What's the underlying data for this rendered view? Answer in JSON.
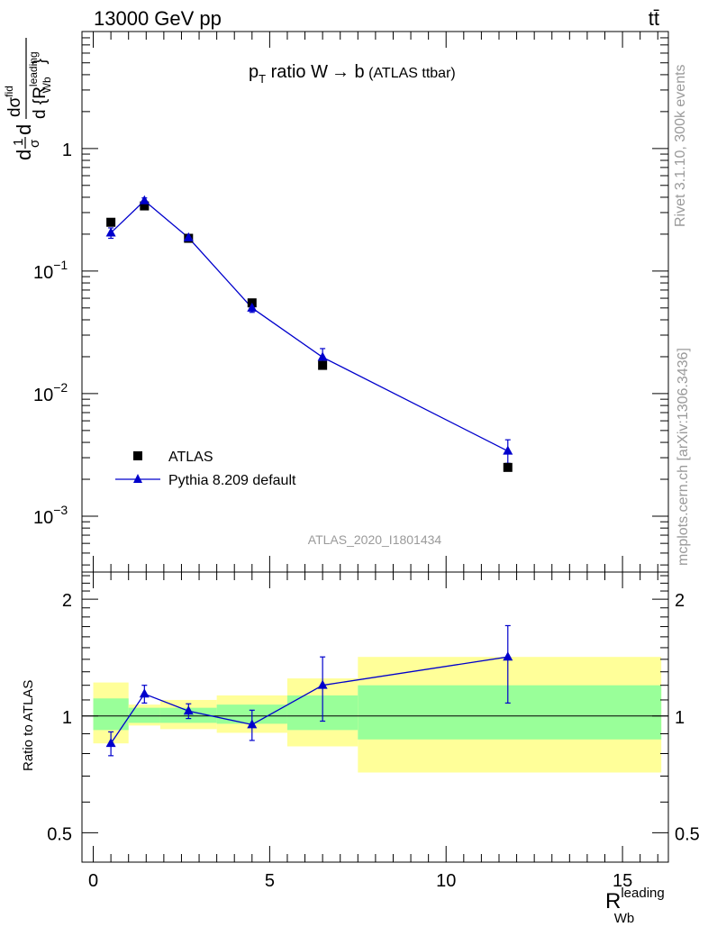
{
  "header": {
    "left": "13000 GeV pp",
    "right": "tt̄"
  },
  "side_labels": {
    "rivet": "Rivet 3.1.10,  300k events",
    "mcplots": "mcplots.cern.ch [arXiv:1306.3436]"
  },
  "watermark": "ATLAS_2020_I1801434",
  "colors": {
    "data": "#000000",
    "mc": "#0000cc",
    "band_inner": "#99ff99",
    "band_outer": "#ffff99"
  },
  "chart_data": [
    {
      "type": "scatter",
      "panel": "main",
      "title": "p_T ratio W → b (ATLAS ttbar)",
      "title_parts": {
        "p": "p",
        "sub": "T",
        "text": " ratio W",
        "arrow": "→",
        "b": " b",
        "small": " (ATLAS ttbar)"
      },
      "ylabel_parts": {
        "lead": "d",
        "frac1_num": "1",
        "frac1_den": "σ",
        "mid": "d",
        "num": "dσ",
        "num_sup": "fid",
        "den": "d {R",
        "den_sup": "leading",
        "den_sub": "Wb",
        "den_close": "}"
      },
      "yscale": "log",
      "ylim": [
        0.00035,
        9
      ],
      "xlim": [
        -0.32,
        16.3
      ],
      "y_ticks": [
        {
          "value": 1,
          "label": "1"
        },
        {
          "value": 0.1,
          "label": "10",
          "exp": "−1"
        },
        {
          "value": 0.01,
          "label": "10",
          "exp": "−2"
        },
        {
          "value": 0.001,
          "label": "10",
          "exp": "−3"
        }
      ],
      "legend": {
        "placement": "bottom-left",
        "entries": [
          {
            "label": "ATLAS",
            "marker": "square"
          },
          {
            "label": "Pythia 8.209 default",
            "marker": "triangle-line"
          }
        ]
      },
      "series": [
        {
          "name": "ATLAS",
          "x": [
            0.5,
            1.45,
            2.7,
            4.5,
            6.5,
            11.75
          ],
          "y": [
            0.25,
            0.34,
            0.185,
            0.055,
            0.017,
            0.0025
          ]
        },
        {
          "name": "Pythia 8.209 default",
          "x": [
            0.5,
            1.45,
            2.7,
            4.5,
            6.5,
            11.75
          ],
          "y": [
            0.205,
            0.375,
            0.187,
            0.05,
            0.0198,
            0.0034
          ],
          "yerr_low": [
            0.02,
            0.02,
            0.008,
            0.004,
            0.0018,
            0.0007
          ],
          "yerr_high": [
            0.02,
            0.02,
            0.008,
            0.004,
            0.0035,
            0.0008
          ]
        }
      ]
    },
    {
      "type": "scatter",
      "panel": "ratio",
      "ylabel": "Ratio to ATLAS",
      "xlabel_parts": {
        "main": "R",
        "sup": "leading",
        "sub": "Wb"
      },
      "yscale": "log",
      "ylim": [
        0.42,
        2.35
      ],
      "xlim": [
        -0.32,
        16.3
      ],
      "y_ticks": [
        {
          "value": 2,
          "label": "2"
        },
        {
          "value": 1,
          "label": "1"
        },
        {
          "value": 0.5,
          "label": "0.5"
        }
      ],
      "x_ticks": [
        {
          "value": 0,
          "label": "0"
        },
        {
          "value": 5,
          "label": "5"
        },
        {
          "value": 10,
          "label": "10"
        },
        {
          "value": 15,
          "label": "15"
        }
      ],
      "bands": [
        {
          "x0": 0.0,
          "x1": 1.0,
          "inner": [
            0.92,
            1.11
          ],
          "outer": [
            0.85,
            1.22
          ]
        },
        {
          "x0": 1.0,
          "x1": 1.9,
          "inner": [
            0.96,
            1.05
          ],
          "outer": [
            0.945,
            1.07
          ]
        },
        {
          "x0": 1.9,
          "x1": 3.5,
          "inner": [
            0.96,
            1.05
          ],
          "outer": [
            0.925,
            1.1
          ]
        },
        {
          "x0": 3.5,
          "x1": 5.5,
          "inner": [
            0.955,
            1.07
          ],
          "outer": [
            0.905,
            1.13
          ]
        },
        {
          "x0": 5.5,
          "x1": 7.5,
          "inner": [
            0.92,
            1.13
          ],
          "outer": [
            0.835,
            1.25
          ]
        },
        {
          "x0": 7.5,
          "x1": 16.1,
          "inner": [
            0.87,
            1.2
          ],
          "outer": [
            0.715,
            1.42
          ]
        }
      ],
      "series": [
        {
          "name": "Pythia 8.209 default",
          "x": [
            0.5,
            1.45,
            2.7,
            4.5,
            6.5,
            11.75
          ],
          "y": [
            0.85,
            1.14,
            1.03,
            0.95,
            1.2,
            1.42
          ],
          "yerr_low": [
            0.06,
            0.06,
            0.045,
            0.085,
            0.23,
            0.34
          ],
          "yerr_high": [
            0.06,
            0.06,
            0.045,
            0.085,
            0.22,
            0.29
          ]
        }
      ]
    }
  ]
}
